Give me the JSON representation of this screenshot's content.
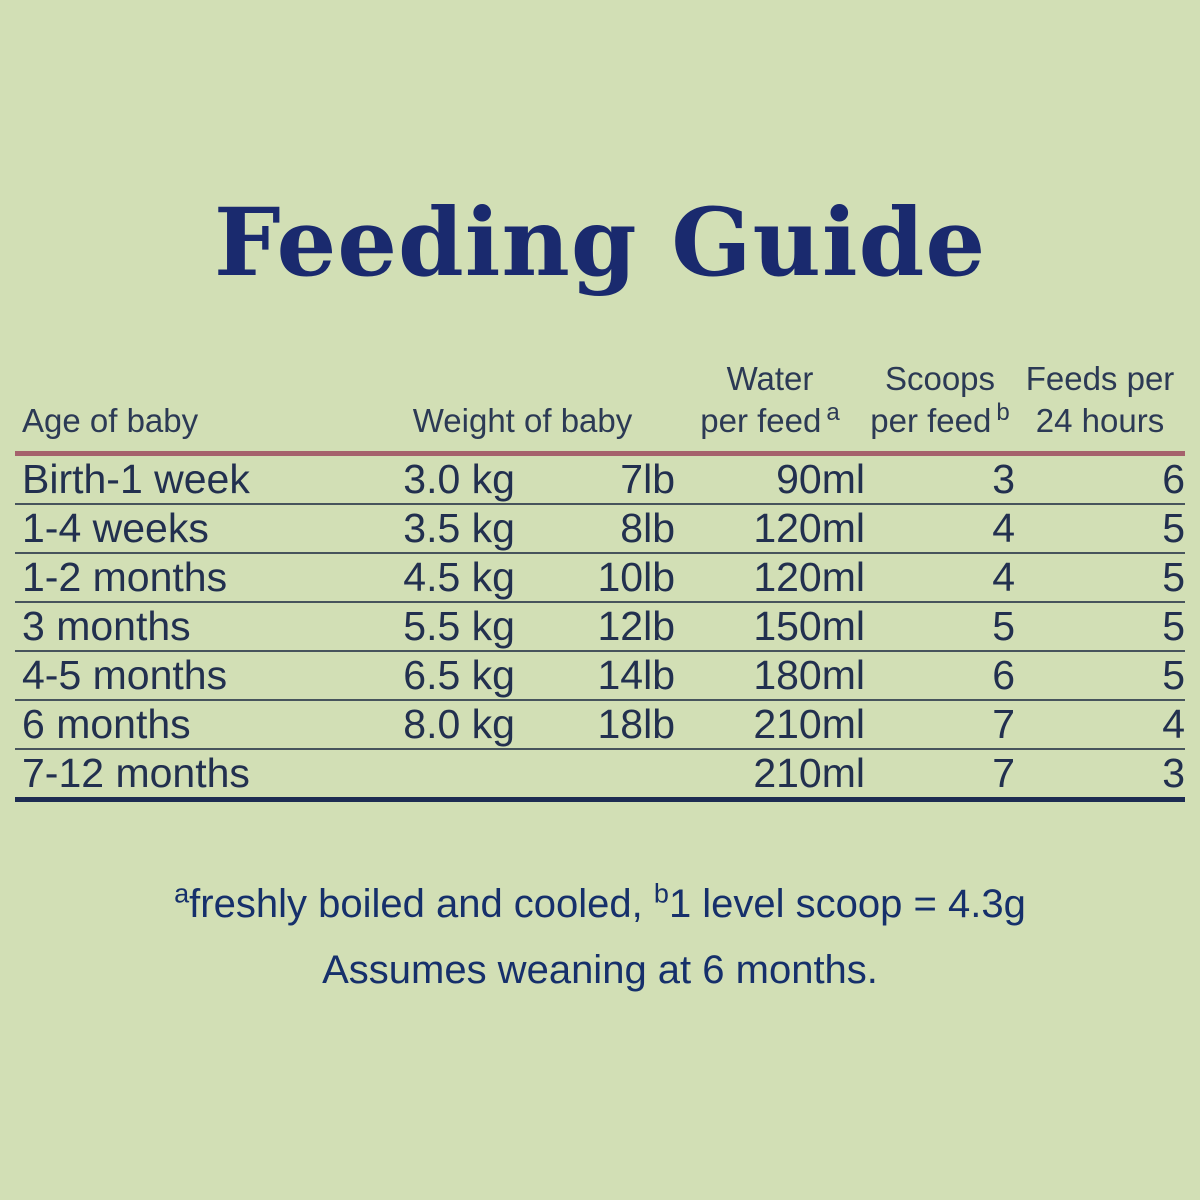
{
  "title": "Feeding Guide",
  "table": {
    "headers": {
      "age": "Age of baby",
      "weight": "Weight of baby",
      "water_line1": "Water",
      "water_line2": "per feed",
      "water_sup": "a",
      "scoops_line1": "Scoops",
      "scoops_line2": "per feed",
      "scoops_sup": "b",
      "feeds_line1": "Feeds per",
      "feeds_line2": "24 hours"
    },
    "rows": [
      {
        "age": "Birth-1 week",
        "kg": "3.0 kg",
        "lb": "7lb",
        "water": "90ml",
        "scoops": "3",
        "feeds": "6"
      },
      {
        "age": "1-4 weeks",
        "kg": "3.5 kg",
        "lb": "8lb",
        "water": "120ml",
        "scoops": "4",
        "feeds": "5"
      },
      {
        "age": "1-2 months",
        "kg": "4.5 kg",
        "lb": "10lb",
        "water": "120ml",
        "scoops": "4",
        "feeds": "5"
      },
      {
        "age": "3 months",
        "kg": "5.5 kg",
        "lb": "12lb",
        "water": "150ml",
        "scoops": "5",
        "feeds": "5"
      },
      {
        "age": "4-5 months",
        "kg": "6.5 kg",
        "lb": "14lb",
        "water": "180ml",
        "scoops": "6",
        "feeds": "5"
      },
      {
        "age": "6 months",
        "kg": "8.0 kg",
        "lb": "18lb",
        "water": "210ml",
        "scoops": "7",
        "feeds": "4"
      },
      {
        "age": "7-12 months",
        "kg": "",
        "lb": "",
        "water": "210ml",
        "scoops": "7",
        "feeds": "3"
      }
    ]
  },
  "footnotes": {
    "sup_a": "a",
    "note_a": "freshly boiled and cooled, ",
    "sup_b": "b",
    "note_b": "1 level scoop = 4.3g",
    "line2": "Assumes weaning at 6 months."
  },
  "colors": {
    "background": "#d2dfb5",
    "title_text": "#1a2a6e",
    "table_text": "#22304f",
    "header_rule": "#a5626c",
    "row_rule": "#47545c",
    "bottom_rule": "#1d2c52",
    "footnote_text": "#16306b"
  }
}
